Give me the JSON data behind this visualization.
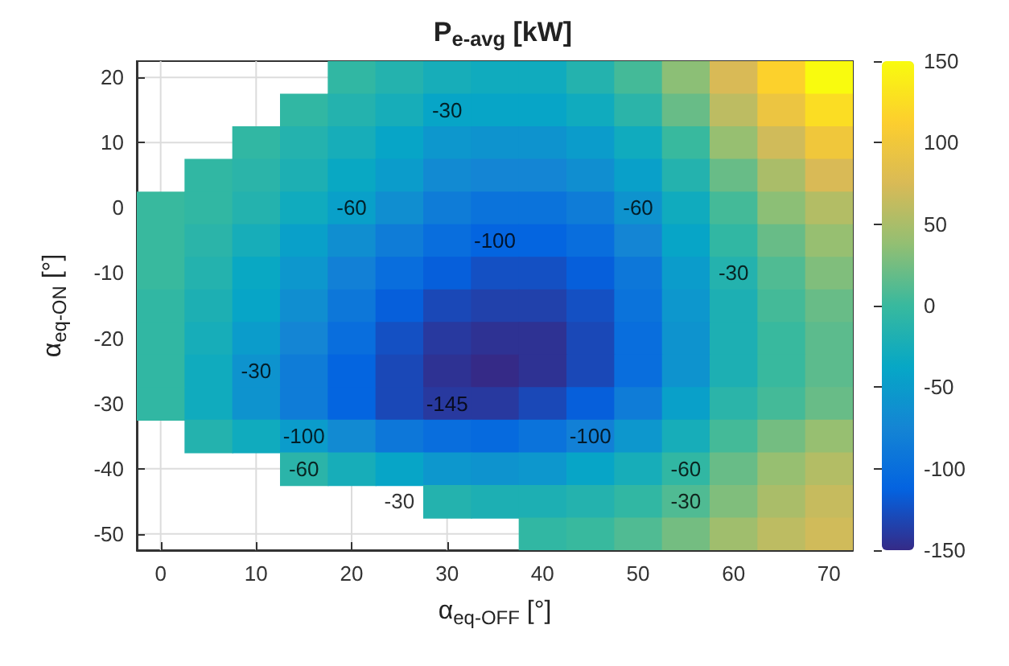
{
  "chart_data": {
    "type": "heatmap",
    "title": "P$_{e-avg}$ [kW]",
    "xlabel": "α$_{eq-OFF}$ [°]",
    "ylabel": "α$_{eq-ON}$ [°]",
    "categories": [
      "0",
      null,
      "10",
      null,
      "20",
      null,
      "30",
      null,
      "40",
      null,
      "50",
      null,
      "60",
      null,
      "70"
    ],
    "y_categories": [
      "20",
      null,
      "10",
      null,
      "0",
      null,
      "-10",
      null,
      "-20",
      null,
      "-30",
      null,
      "-40",
      null,
      "-50"
    ],
    "clim": [
      -150,
      150
    ],
    "cticks": [
      -150,
      -100,
      -50,
      0,
      50,
      100,
      150
    ],
    "grid": true,
    "cells": [
      [
        null,
        null,
        null,
        null,
        -5,
        -15,
        -25,
        -30,
        -30,
        -15,
        5,
        35,
        75,
        115,
        150
      ],
      [
        null,
        null,
        null,
        -5,
        -15,
        -25,
        -40,
        -40,
        -40,
        -30,
        -10,
        20,
        60,
        95,
        125
      ],
      [
        null,
        null,
        -5,
        -15,
        -25,
        -40,
        -55,
        -60,
        -60,
        -50,
        -30,
        0,
        40,
        70,
        100
      ],
      [
        null,
        -5,
        -10,
        -20,
        -35,
        -50,
        -70,
        -75,
        -75,
        -65,
        -45,
        -15,
        20,
        50,
        75
      ],
      [
        0,
        -5,
        -15,
        -30,
        -45,
        -65,
        -85,
        -95,
        -95,
        -85,
        -60,
        -30,
        5,
        35,
        55
      ],
      [
        0,
        -10,
        -25,
        -45,
        -65,
        -85,
        -100,
        -110,
        -110,
        -100,
        -75,
        -40,
        -5,
        20,
        40
      ],
      [
        0,
        -15,
        -35,
        -55,
        -80,
        -100,
        -115,
        -125,
        -125,
        -115,
        -90,
        -50,
        -15,
        10,
        30
      ],
      [
        -5,
        -20,
        -40,
        -65,
        -90,
        -115,
        -130,
        -135,
        -135,
        -125,
        -95,
        -55,
        -20,
        5,
        20
      ],
      [
        -5,
        -25,
        -50,
        -75,
        -100,
        -125,
        -140,
        -145,
        -145,
        -130,
        -100,
        -60,
        -20,
        0,
        15
      ],
      [
        -5,
        -30,
        -60,
        -85,
        -110,
        -130,
        -145,
        -150,
        -145,
        -130,
        -100,
        -60,
        -20,
        0,
        15
      ],
      [
        -5,
        -30,
        -60,
        -85,
        -110,
        -130,
        -140,
        -140,
        -130,
        -115,
        -85,
        -45,
        -10,
        5,
        20
      ],
      [
        null,
        -15,
        -30,
        -50,
        -70,
        -90,
        -100,
        -105,
        -95,
        -80,
        -55,
        -25,
        5,
        25,
        40
      ],
      [
        null,
        null,
        null,
        -10,
        -25,
        -40,
        -55,
        -60,
        -55,
        -40,
        -25,
        -5,
        20,
        40,
        55
      ],
      [
        null,
        null,
        null,
        null,
        null,
        null,
        -15,
        -20,
        -20,
        -15,
        -5,
        10,
        30,
        50,
        65
      ],
      [
        null,
        null,
        null,
        null,
        null,
        null,
        null,
        null,
        -5,
        0,
        10,
        25,
        45,
        60,
        70
      ]
    ],
    "annotations": [
      "-30",
      "-30",
      "-30",
      "-30",
      "-30",
      "-60",
      "-60",
      "-60",
      "-60",
      "-100",
      "-100",
      "-100",
      "-145"
    ]
  }
}
